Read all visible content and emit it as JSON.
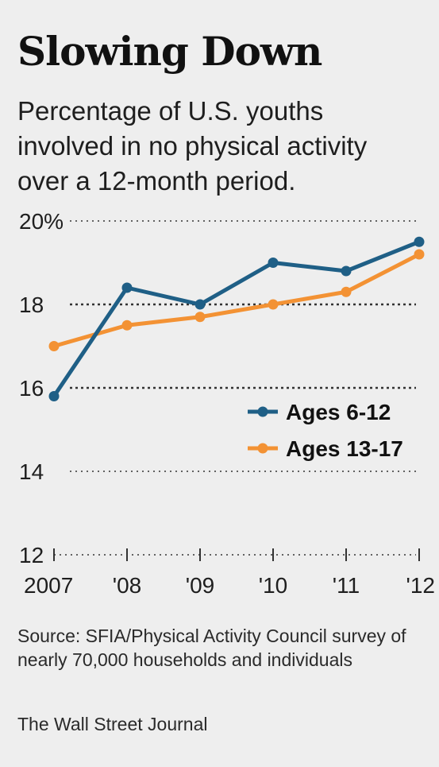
{
  "header": {
    "title": "Slowing Down",
    "subtitle": "Percentage of U.S. youths involved in no physical activity over a 12-month period."
  },
  "footer": {
    "source": "Source: SFIA/Physical Activity Council survey of nearly 70,000 households and individuals",
    "credit": "The Wall Street Journal"
  },
  "colors": {
    "series_1": "#1f5f86",
    "series_2": "#f39234",
    "background": "#eeeeee",
    "grid": "#333333"
  },
  "chart_data": {
    "type": "line",
    "title": "Slowing Down",
    "subtitle": "Percentage of U.S. youths involved in no physical activity over a 12-month period.",
    "xlabel": "",
    "ylabel": "",
    "x": [
      "2007",
      "'08",
      "'09",
      "'10",
      "'11",
      "'12"
    ],
    "ylim": [
      12,
      20
    ],
    "yticks": [
      12,
      14,
      16,
      18,
      20
    ],
    "ytick_labels": [
      "12",
      "14",
      "16",
      "18",
      "20%"
    ],
    "grid": true,
    "legend_position": "right",
    "series": [
      {
        "name": "Ages 6-12",
        "values": [
          15.8,
          18.4,
          18.0,
          19.0,
          18.8,
          19.5
        ]
      },
      {
        "name": "Ages 13-17",
        "values": [
          17.0,
          17.5,
          17.7,
          18.0,
          18.3,
          19.2
        ]
      }
    ]
  }
}
